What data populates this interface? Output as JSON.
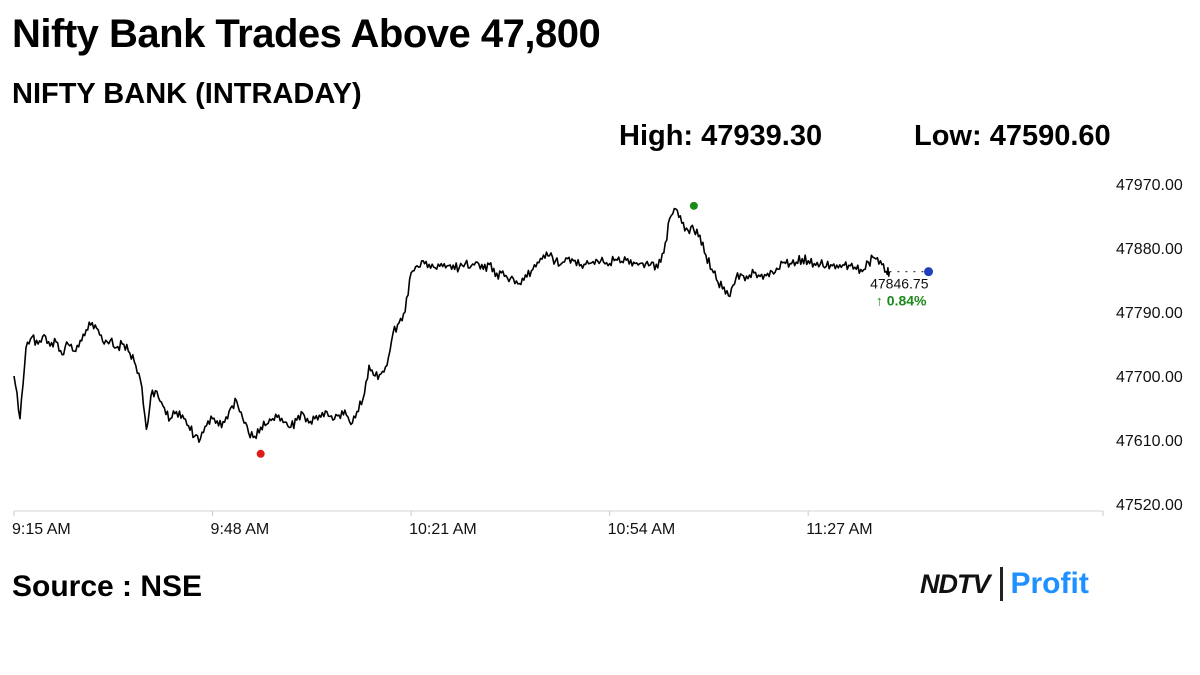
{
  "headline": "Nifty Bank Trades Above 47,800",
  "chart_data": {
    "type": "line",
    "title": "NIFTY BANK (INTRADAY)",
    "high_label": "High: 47939.30",
    "low_label": "Low: 47590.60",
    "high": 47939.3,
    "low": 47590.6,
    "last_value_label": "47846.75",
    "change_label": "↑ 0.84%",
    "last_value": 47846.75,
    "change_pct": 0.84,
    "ylim": [
      47520,
      47980
    ],
    "yticks": [
      {
        "v": 47970,
        "label": "47970.00"
      },
      {
        "v": 47880,
        "label": "47880.00"
      },
      {
        "v": 47790,
        "label": "47790.00"
      },
      {
        "v": 47700,
        "label": "47700.00"
      },
      {
        "v": 47610,
        "label": "47610.00"
      },
      {
        "v": 47520,
        "label": "47520.00"
      }
    ],
    "xlim": [
      0,
      181
    ],
    "xticks": [
      {
        "t": 0,
        "label": "9:15 AM"
      },
      {
        "t": 33,
        "label": "9:48 AM"
      },
      {
        "t": 66,
        "label": "10:21 AM"
      },
      {
        "t": 99,
        "label": "10:54 AM"
      },
      {
        "t": 132,
        "label": "11:27 AM"
      }
    ],
    "grid": false,
    "legend": "none",
    "colors": {
      "line": "#000000",
      "high_marker": "#1a8a1a",
      "low_marker": "#e01b1b",
      "last_marker": "#1f3fbf",
      "change": "#1a8a1a"
    },
    "series": [
      {
        "name": "",
        "x": [
          0,
          1,
          2,
          3,
          4,
          5,
          6,
          7,
          8,
          9,
          10,
          11,
          12,
          13,
          14,
          15,
          16,
          17,
          18,
          19,
          20,
          21,
          22,
          23,
          24,
          25,
          26,
          27,
          28,
          29,
          30,
          31,
          32,
          33,
          34,
          35,
          36,
          37,
          38,
          39,
          40,
          41,
          42,
          43,
          44,
          45,
          46,
          47,
          48,
          49,
          50,
          51,
          52,
          53,
          54,
          55,
          56,
          57,
          58,
          59,
          60,
          61,
          62,
          63,
          64,
          65,
          66,
          67,
          68,
          69,
          70,
          71,
          72,
          73,
          74,
          75,
          76,
          77,
          78,
          79,
          80,
          81,
          82,
          83,
          84,
          85,
          86,
          87,
          88,
          89,
          90,
          91,
          92,
          93,
          94,
          95,
          96,
          97,
          98,
          99,
          100,
          101,
          102,
          103,
          104,
          105,
          106,
          107,
          108,
          109,
          110,
          111,
          112,
          113,
          114,
          115,
          116,
          117,
          118,
          119,
          120,
          121,
          122,
          123,
          124,
          125,
          126,
          127,
          128,
          129,
          130,
          131,
          132,
          133,
          134,
          135,
          136,
          137,
          138,
          139,
          140,
          141,
          142,
          143,
          144,
          145,
          145.5
        ],
        "y": [
          47700,
          47640,
          47740,
          47755,
          47745,
          47758,
          47742,
          47748,
          47730,
          47745,
          47735,
          47750,
          47765,
          47775,
          47765,
          47745,
          47750,
          47740,
          47745,
          47735,
          47720,
          47695,
          47625,
          47680,
          47670,
          47655,
          47640,
          47650,
          47645,
          47630,
          47615,
          47612,
          47630,
          47640,
          47630,
          47635,
          47655,
          47665,
          47641,
          47620,
          47615,
          47628,
          47632,
          47640,
          47645,
          47635,
          47628,
          47638,
          47648,
          47634,
          47640,
          47642,
          47650,
          47638,
          47645,
          47652,
          47632,
          47650,
          47668,
          47715,
          47700,
          47703,
          47715,
          47760,
          47775,
          47790,
          47845,
          47855,
          47862,
          47857,
          47852,
          47858,
          47855,
          47856,
          47852,
          47858,
          47855,
          47860,
          47850,
          47857,
          47840,
          47845,
          47838,
          47837,
          47830,
          47842,
          47848,
          47860,
          47870,
          47869,
          47862,
          47858,
          47865,
          47862,
          47855,
          47857,
          47859,
          47862,
          47860,
          47858,
          47864,
          47861,
          47865,
          47860,
          47858,
          47858,
          47860,
          47852,
          47873,
          47922,
          47935,
          47915,
          47905,
          47905,
          47898,
          47870,
          47850,
          47832,
          47825,
          47812,
          47838,
          47842,
          47837,
          47845,
          47840,
          47841,
          47847,
          47850,
          47860,
          47858,
          47860,
          47865,
          47862,
          47858,
          47857,
          47854,
          47855,
          47852,
          47856,
          47855,
          47850,
          47847,
          47860,
          47866,
          47862,
          47846.75,
          47846.75
        ]
      }
    ],
    "markers": {
      "high": {
        "t": 113,
        "v": 47939.3
      },
      "low": {
        "t": 41,
        "v": 47590.6
      },
      "last": {
        "t": 152,
        "v": 47846.75
      }
    }
  },
  "footer": {
    "source": "Source : NSE",
    "logo_left": "NDTV",
    "logo_right": "Profit"
  }
}
